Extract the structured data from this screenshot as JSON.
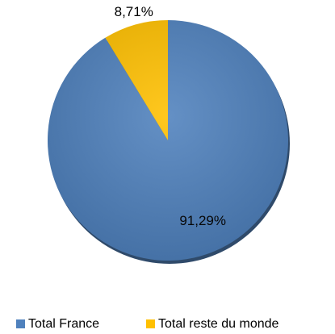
{
  "chart_data": {
    "type": "pie",
    "categories": [
      "Total France",
      "Total reste du monde"
    ],
    "values": [
      91.29,
      8.71
    ],
    "value_labels": [
      "91,29%",
      "8,71%"
    ],
    "colors": [
      "#4f81bd",
      "#ffc000"
    ],
    "legend": "bottom"
  }
}
